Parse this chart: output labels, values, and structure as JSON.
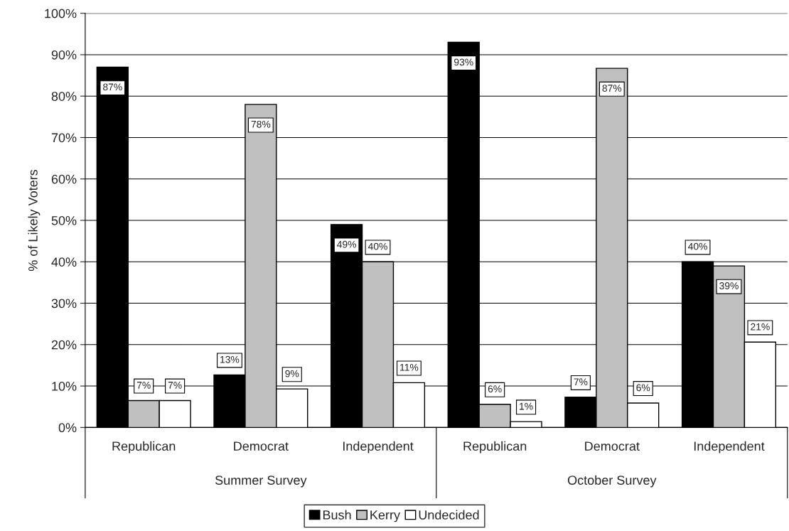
{
  "chart_data": {
    "type": "bar",
    "ylabel": "% of Likely Voters",
    "categories": [
      "Republican",
      "Democrat",
      "Independent",
      "Republican",
      "Democrat",
      "Independent"
    ],
    "series": [
      {
        "name": "Bush",
        "color": "#000000",
        "values": [
          87,
          12.7,
          49,
          93,
          7.3,
          40
        ],
        "value_labels": [
          "87%",
          "13%",
          "49%",
          "93%",
          "7%",
          "40%"
        ]
      },
      {
        "name": "Kerry",
        "color": "#c0c0c0",
        "values": [
          6.5,
          78,
          40,
          5.6,
          86.7,
          39
        ],
        "value_labels": [
          "7%",
          "78%",
          "40%",
          "6%",
          "87%",
          "39%"
        ]
      },
      {
        "name": "Undecided",
        "color": "#ffffff",
        "values": [
          6.5,
          9.3,
          10.8,
          1.4,
          5.9,
          20.6
        ],
        "value_labels": [
          "7%",
          "9%",
          "11%",
          "1%",
          "6%",
          "21%"
        ]
      }
    ],
    "annotations": [
      "Summer Survey",
      "October Survey"
    ],
    "ylim": [
      0,
      100
    ],
    "yticks": [
      {
        "value": 0,
        "label": "0%"
      },
      {
        "value": 10,
        "label": "10%"
      },
      {
        "value": 20,
        "label": "20%"
      },
      {
        "value": 30,
        "label": "30%"
      },
      {
        "value": 40,
        "label": "40%"
      },
      {
        "value": 50,
        "label": "50%"
      },
      {
        "value": 60,
        "label": "60%"
      },
      {
        "value": 70,
        "label": "70%"
      },
      {
        "value": 80,
        "label": "80%"
      },
      {
        "value": 90,
        "label": "90%"
      },
      {
        "value": 100,
        "label": "100%"
      }
    ],
    "grid": "y",
    "legend": "bottom"
  }
}
